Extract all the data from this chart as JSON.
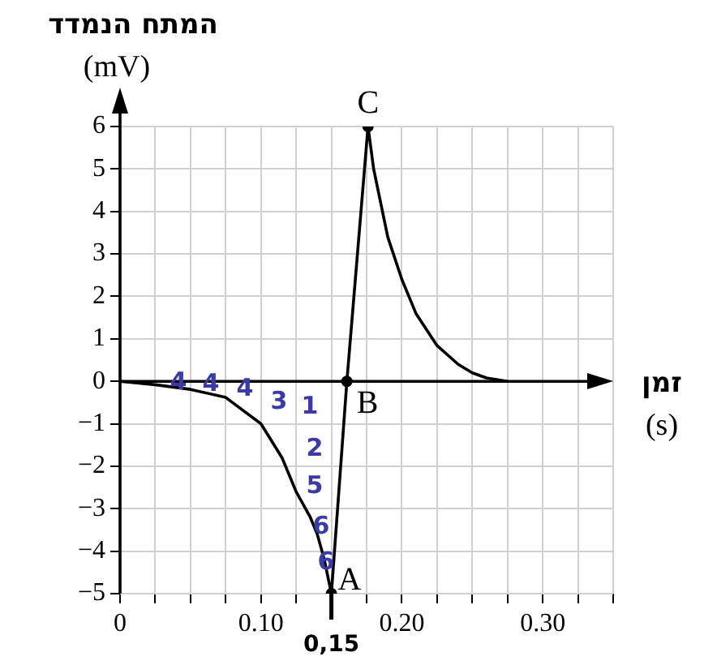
{
  "chart_data": {
    "type": "line",
    "xlabel": "זמן\n(s)",
    "ylabel": "המתח הנמדד\n(mV)",
    "xlim": [
      0,
      0.35
    ],
    "ylim": [
      -5,
      6
    ],
    "xticks": [
      0,
      {
        "value": 0.025,
        "label": null
      },
      {
        "value": 0.05,
        "label": null
      },
      {
        "value": 0.075,
        "label": null
      },
      {
        "value": 0.1,
        "label": "0.10"
      },
      {
        "value": 0.125,
        "label": null
      },
      {
        "value": 0.15,
        "label": null
      },
      {
        "value": 0.175,
        "label": null
      },
      {
        "value": 0.2,
        "label": "0.20"
      },
      {
        "value": 0.225,
        "label": null
      },
      {
        "value": 0.25,
        "label": null
      },
      {
        "value": 0.275,
        "label": null
      },
      {
        "value": 0.3,
        "label": "0.30"
      },
      {
        "value": 0.325,
        "label": null
      },
      {
        "value": 0.35,
        "label": null
      }
    ],
    "yticks": [
      -5,
      -4,
      -3,
      -2,
      -1,
      0,
      1,
      2,
      3,
      4,
      5,
      6
    ],
    "grid": true,
    "legend": false,
    "series": [
      {
        "color": "#000000",
        "marker": "none",
        "x": [
          0,
          0.025,
          0.05,
          0.075,
          0.1,
          0.115,
          0.125,
          0.135,
          0.14,
          0.145,
          0.15,
          0.161,
          0.176,
          0.18,
          0.19,
          0.2,
          0.21,
          0.225,
          0.24,
          0.25,
          0.26,
          0.275
        ],
        "values": [
          0,
          -0.08,
          -0.19,
          -0.38,
          -1.0,
          -1.8,
          -2.6,
          -3.2,
          -3.6,
          -4.2,
          -5,
          0,
          6,
          5.0,
          3.4,
          2.4,
          1.6,
          0.84,
          0.4,
          0.2,
          0.08,
          0
        ]
      },
      {
        "type": "scatter",
        "color": "#000000",
        "marker": "circle",
        "x": [
          0.15,
          0.161,
          0.176
        ],
        "values": [
          -5,
          0,
          6
        ]
      }
    ],
    "annotations": [
      {
        "text": "A",
        "x": 0.15,
        "y": -5
      },
      {
        "text": "B",
        "x": 0.161,
        "y": 0
      },
      {
        "text": "C",
        "x": 0.176,
        "y": 6
      },
      "4",
      "4",
      "4",
      "3",
      "1",
      "2",
      "5",
      "6",
      "6",
      {
        "text": "0,15",
        "x": 0.15,
        "y": -5
      }
    ]
  }
}
